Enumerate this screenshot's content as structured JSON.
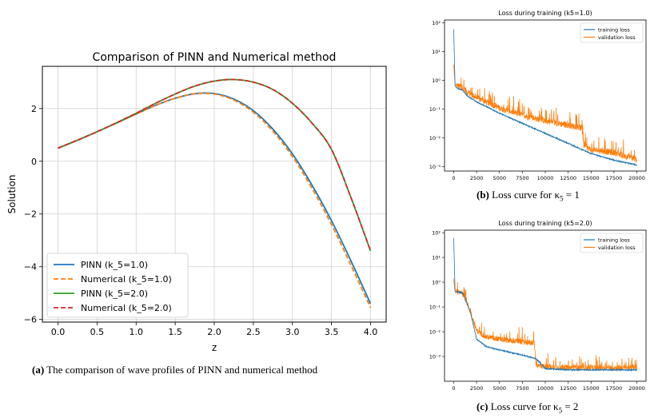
{
  "captions": {
    "a_tag": "(a)",
    "a_text": "The comparison of wave profiles of PINN and numerical method",
    "b_tag": "(b)",
    "b_text": "Loss curve for κ",
    "b_sub": "5",
    "b_val": "= 1",
    "c_tag": "(c)",
    "c_text": "Loss curve for κ",
    "c_sub": "5",
    "c_val": "= 2"
  },
  "chart_data": [
    {
      "id": "a",
      "type": "line",
      "title": "Comparison of PINN and Numerical method",
      "xlabel": "z",
      "ylabel": "Solution",
      "xlim": [
        -0.2,
        4.2
      ],
      "ylim": [
        -6.1,
        3.6
      ],
      "xticks": [
        0.0,
        0.5,
        1.0,
        1.5,
        2.0,
        2.5,
        3.0,
        3.5,
        4.0
      ],
      "xtick_labels": [
        "0.0",
        "0.5",
        "1.0",
        "1.5",
        "2.0",
        "2.5",
        "3.0",
        "3.5",
        "4.0"
      ],
      "yticks": [
        -6,
        -4,
        -2,
        0,
        2
      ],
      "ytick_labels": [
        "−6",
        "−4",
        "−2",
        "0",
        "2"
      ],
      "grid": true,
      "legend": "lower-left",
      "x": [
        0.0,
        0.25,
        0.5,
        0.75,
        1.0,
        1.25,
        1.5,
        1.75,
        2.0,
        2.25,
        2.5,
        2.75,
        3.0,
        3.25,
        3.5,
        3.75,
        4.0
      ],
      "series": [
        {
          "name": "PINN  (k_5=1.0)",
          "color": "#1f77b4",
          "dash": "solid",
          "values": [
            0.5,
            0.8,
            1.12,
            1.45,
            1.79,
            2.12,
            2.39,
            2.56,
            2.57,
            2.36,
            1.92,
            1.22,
            0.28,
            -0.9,
            -2.25,
            -3.78,
            -5.4
          ]
        },
        {
          "name": "Numerical  (k_5=1.0)",
          "color": "#ff7f0e",
          "dash": "dashed",
          "values": [
            0.5,
            0.8,
            1.12,
            1.45,
            1.79,
            2.12,
            2.39,
            2.56,
            2.55,
            2.32,
            1.86,
            1.14,
            0.18,
            -1.02,
            -2.4,
            -3.95,
            -5.55
          ]
        },
        {
          "name": "PINN  (k_5=2.0)",
          "color": "#2ca02c",
          "dash": "solid",
          "values": [
            0.5,
            0.8,
            1.12,
            1.46,
            1.82,
            2.2,
            2.55,
            2.85,
            3.04,
            3.1,
            3.0,
            2.72,
            2.2,
            1.45,
            0.45,
            -1.38,
            -3.4
          ]
        },
        {
          "name": "Numerical  (k_5=2.0)",
          "color": "#d62728",
          "dash": "dashed",
          "values": [
            0.5,
            0.8,
            1.12,
            1.46,
            1.82,
            2.2,
            2.55,
            2.85,
            3.04,
            3.1,
            3.0,
            2.72,
            2.2,
            1.45,
            0.45,
            -1.38,
            -3.4
          ]
        }
      ]
    },
    {
      "id": "b",
      "type": "line",
      "title": "Loss during training (k5=1.0)",
      "xlabel": "",
      "ylabel": "",
      "yscale": "log",
      "xlim": [
        -1000,
        21000
      ],
      "ylim_log10": [
        -3.15,
        2.1
      ],
      "xticks": [
        0,
        2500,
        5000,
        7500,
        10000,
        12500,
        15000,
        17500,
        20000
      ],
      "xtick_labels": [
        "0",
        "2500",
        "5000",
        "7500",
        "10000",
        "12500",
        "15000",
        "17500",
        "20000"
      ],
      "yticks_log10": [
        -3,
        -2,
        -1,
        0,
        1,
        2
      ],
      "ytick_labels": [
        "10⁻³",
        "10⁻²",
        "10⁻¹",
        "10⁰",
        "10¹",
        "10²"
      ],
      "legend": "top-right",
      "grid": false,
      "series": [
        {
          "name": "training loss",
          "color": "#1f77b4",
          "x": [
            0,
            150,
            400,
            1000,
            1500,
            2500,
            5000,
            7500,
            10000,
            12500,
            15000,
            17500,
            20000
          ],
          "log10": [
            1.78,
            -0.2,
            -0.28,
            -0.35,
            -0.55,
            -0.75,
            -1.15,
            -1.5,
            -1.85,
            -2.2,
            -2.55,
            -2.78,
            -2.95
          ],
          "noise": 0.04
        },
        {
          "name": "validation loss",
          "color": "#ff7f0e",
          "x": [
            0,
            150,
            400,
            1000,
            1500,
            2500,
            5000,
            7500,
            10000,
            12500,
            14000,
            14200,
            15000,
            17500,
            20000
          ],
          "log10": [
            0.55,
            -0.15,
            -0.22,
            -0.3,
            -0.45,
            -0.65,
            -1.0,
            -1.25,
            -1.45,
            -1.6,
            -1.7,
            -2.3,
            -2.45,
            -2.55,
            -2.8
          ],
          "noise": 0.22
        }
      ]
    },
    {
      "id": "c",
      "type": "line",
      "title": "Loss during training (k5=2.0)",
      "xlabel": "",
      "ylabel": "",
      "yscale": "log",
      "xlim": [
        -1000,
        21000
      ],
      "ylim_log10": [
        -4.0,
        2.1
      ],
      "xticks": [
        0,
        2500,
        5000,
        7500,
        10000,
        12500,
        15000,
        17500,
        20000
      ],
      "xtick_labels": [
        "0",
        "2500",
        "5000",
        "7500",
        "10000",
        "12500",
        "15000",
        "17500",
        "20000"
      ],
      "yticks_log10": [
        -3,
        -2,
        -1,
        0,
        1,
        2
      ],
      "ytick_labels": [
        "10⁻³",
        "10⁻²",
        "10⁻¹",
        "10⁰",
        "10¹",
        "10²"
      ],
      "legend": "top-right",
      "grid": false,
      "series": [
        {
          "name": "training loss",
          "color": "#1f77b4",
          "x": [
            0,
            150,
            400,
            1000,
            1800,
            2500,
            3500,
            5000,
            7500,
            9000,
            10000,
            12500,
            15000,
            17500,
            20000
          ],
          "log10": [
            1.78,
            -0.35,
            -0.4,
            -0.45,
            -1.2,
            -2.3,
            -2.6,
            -2.75,
            -2.95,
            -3.1,
            -3.5,
            -3.55,
            -3.55,
            -3.55,
            -3.55
          ],
          "noise": 0.05
        },
        {
          "name": "validation loss",
          "color": "#ff7f0e",
          "x": [
            0,
            150,
            400,
            1000,
            1800,
            2500,
            3500,
            5000,
            7500,
            8800,
            9000,
            10000,
            12500,
            15000,
            17500,
            20000
          ],
          "log10": [
            0.15,
            -0.4,
            -0.45,
            -0.5,
            -1.2,
            -2.0,
            -2.25,
            -2.35,
            -2.45,
            -2.5,
            -3.4,
            -3.45,
            -3.5,
            -3.5,
            -3.5,
            -3.5
          ],
          "noise": 0.22
        }
      ]
    }
  ]
}
